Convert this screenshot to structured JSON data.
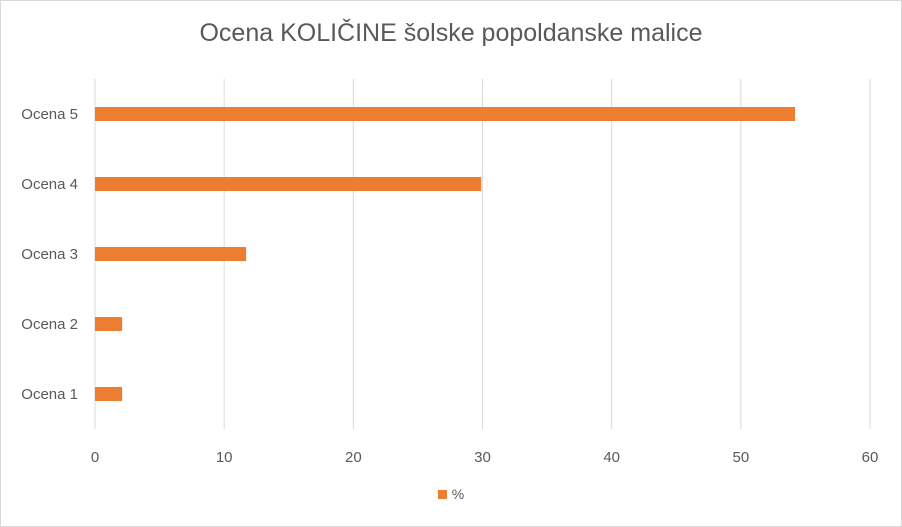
{
  "chart_data": {
    "type": "bar",
    "orientation": "horizontal",
    "title": "Ocena KOLIČINE šolske popoldanske malice",
    "categories": [
      "Ocena 5",
      "Ocena 4",
      "Ocena 3",
      "Ocena 2",
      "Ocena 1"
    ],
    "series": [
      {
        "name": "%",
        "values": [
          54.2,
          29.9,
          11.7,
          2.1,
          2.1
        ],
        "color": "#ed7d31"
      }
    ],
    "xlabel": "",
    "ylabel": "",
    "xlim": [
      0,
      60
    ],
    "xticks": [
      "0",
      "10",
      "20",
      "30",
      "40",
      "50",
      "60"
    ],
    "grid": "vertical",
    "legend": "bottom"
  }
}
